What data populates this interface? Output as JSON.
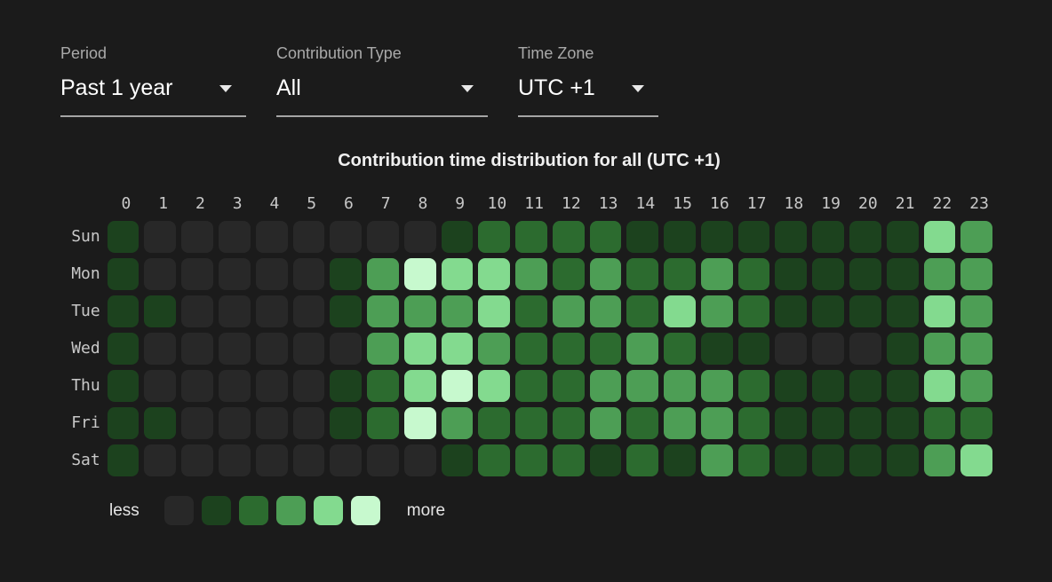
{
  "controls": {
    "period": {
      "label": "Period",
      "value": "Past 1 year"
    },
    "contribution_type": {
      "label": "Contribution Type",
      "value": "All"
    },
    "time_zone": {
      "label": "Time Zone",
      "value": "UTC +1"
    }
  },
  "chart": {
    "title": "Contribution time distribution for all (UTC +1)",
    "legend": {
      "less_label": "less",
      "more_label": "more"
    }
  },
  "colors": {
    "background": "#1b1b1b",
    "level_palette": [
      "#282828",
      "#1c421e",
      "#2c6b2f",
      "#4d9e55",
      "#83da8f",
      "#c7f9ce"
    ],
    "label_text": "#c8c8c8",
    "underline": "#a5a5a5"
  },
  "chart_data": {
    "type": "heatmap",
    "title": "Contribution time distribution for all (UTC +1)",
    "x": [
      "0",
      "1",
      "2",
      "3",
      "4",
      "5",
      "6",
      "7",
      "8",
      "9",
      "10",
      "11",
      "12",
      "13",
      "14",
      "15",
      "16",
      "17",
      "18",
      "19",
      "20",
      "21",
      "22",
      "23"
    ],
    "categories": [
      "Sun",
      "Mon",
      "Tue",
      "Wed",
      "Thu",
      "Fri",
      "Sat"
    ],
    "scale": "intensity levels 0 (least) to 5 (most), mapped to colors.level_palette",
    "series": [
      {
        "name": "Sun",
        "levels": [
          1,
          0,
          0,
          0,
          0,
          0,
          0,
          0,
          0,
          1,
          2,
          2,
          2,
          2,
          1,
          1,
          1,
          1,
          1,
          1,
          1,
          1,
          4,
          3
        ]
      },
      {
        "name": "Mon",
        "levels": [
          1,
          0,
          0,
          0,
          0,
          0,
          1,
          3,
          5,
          4,
          4,
          3,
          2,
          3,
          2,
          2,
          3,
          2,
          1,
          1,
          1,
          1,
          3,
          3
        ]
      },
      {
        "name": "Tue",
        "levels": [
          1,
          1,
          0,
          0,
          0,
          0,
          1,
          3,
          3,
          3,
          4,
          2,
          3,
          3,
          2,
          4,
          3,
          2,
          1,
          1,
          1,
          1,
          4,
          3
        ]
      },
      {
        "name": "Wed",
        "levels": [
          1,
          0,
          0,
          0,
          0,
          0,
          0,
          3,
          4,
          4,
          3,
          2,
          2,
          2,
          3,
          2,
          1,
          1,
          0,
          0,
          0,
          1,
          3,
          3
        ]
      },
      {
        "name": "Thu",
        "levels": [
          1,
          0,
          0,
          0,
          0,
          0,
          1,
          2,
          4,
          5,
          4,
          2,
          2,
          3,
          3,
          3,
          3,
          2,
          1,
          1,
          1,
          1,
          4,
          3
        ]
      },
      {
        "name": "Fri",
        "levels": [
          1,
          1,
          0,
          0,
          0,
          0,
          1,
          2,
          5,
          3,
          2,
          2,
          2,
          3,
          2,
          3,
          3,
          2,
          1,
          1,
          1,
          1,
          2,
          2
        ]
      },
      {
        "name": "Sat",
        "levels": [
          1,
          0,
          0,
          0,
          0,
          0,
          0,
          0,
          0,
          1,
          2,
          2,
          2,
          1,
          2,
          1,
          3,
          2,
          1,
          1,
          1,
          1,
          3,
          4
        ]
      }
    ],
    "legend_levels": [
      0,
      1,
      2,
      3,
      4,
      5
    ]
  }
}
